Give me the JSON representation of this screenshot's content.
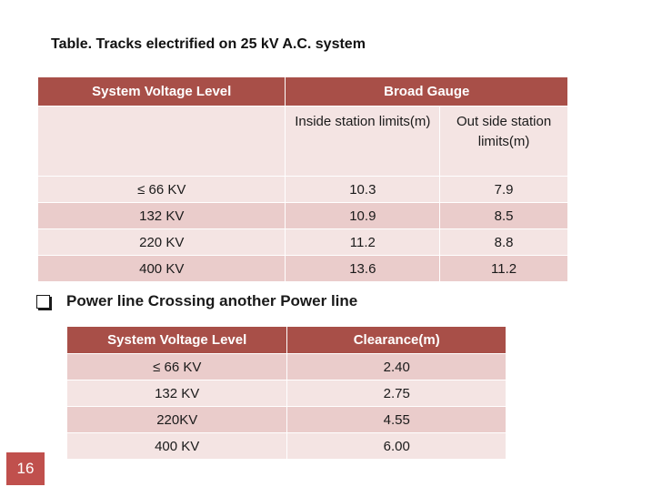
{
  "title": "Table. Tracks electrified on 25 kV A.C. system",
  "table1": {
    "col1_header": "System Voltage Level",
    "group_header": "Broad Gauge",
    "sub_headers": [
      "Inside station limits(m)",
      "Out side station limits(m)"
    ],
    "rows": [
      {
        "voltage": "≤ 66 KV",
        "inside": "10.3",
        "outside": "7.9"
      },
      {
        "voltage": "132 KV",
        "inside": "10.9",
        "outside": "8.5"
      },
      {
        "voltage": "220 KV",
        "inside": "11.2",
        "outside": "8.8"
      },
      {
        "voltage": "400 KV",
        "inside": "13.6",
        "outside": "11.2"
      }
    ]
  },
  "section2": {
    "bullet_text": "Power line Crossing another Power line"
  },
  "table2": {
    "headers": [
      "System Voltage Level",
      "Clearance(m)"
    ],
    "rows": [
      {
        "voltage": "≤ 66 KV",
        "clearance": "2.40"
      },
      {
        "voltage": "132 KV",
        "clearance": "2.75"
      },
      {
        "voltage": "220KV",
        "clearance": "4.55"
      },
      {
        "voltage": "400 KV",
        "clearance": "6.00"
      }
    ]
  },
  "page_number": "16",
  "colors": {
    "header_bg": "#a84f48",
    "row_light": "#f4e4e3",
    "row_dark": "#eacccb",
    "page_badge": "#c0504d"
  }
}
